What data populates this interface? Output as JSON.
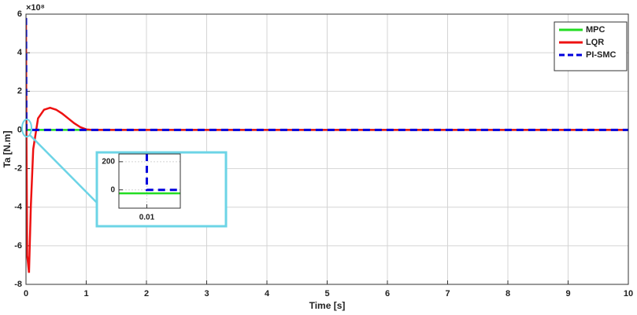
{
  "chart_data": [
    {
      "type": "line",
      "x_label": "Time [s]",
      "y_label": "Ta [N.m]",
      "y_multiplier": "×10⁸",
      "x": [
        0,
        0.005,
        0.02,
        0.05,
        0.08,
        0.12,
        0.2,
        0.3,
        0.4,
        0.5,
        0.6,
        0.7,
        0.8,
        0.9,
        1.0,
        1.1,
        2,
        3,
        4,
        5,
        6,
        7,
        8,
        9,
        10
      ],
      "series": [
        {
          "name": "MPC",
          "color": "#22dd22",
          "dash": false,
          "values": [
            0,
            0,
            0,
            0,
            0,
            0,
            0,
            0,
            0,
            0,
            0,
            0,
            0,
            0,
            0,
            0,
            0,
            0,
            0,
            0,
            0,
            0,
            0,
            0,
            0
          ]
        },
        {
          "name": "LQR",
          "color": "#ee1111",
          "dash": false,
          "values": [
            5.8,
            1.0,
            -6.5,
            -7.4,
            -4.0,
            -1.0,
            0.6,
            1.05,
            1.15,
            1.05,
            0.85,
            0.6,
            0.35,
            0.15,
            0.03,
            0,
            0,
            0,
            0,
            0,
            0,
            0,
            0,
            0,
            0
          ]
        },
        {
          "name": "PI-SMC",
          "color": "#0000dd",
          "dash": true,
          "values": [
            5.8,
            0,
            0,
            0,
            0,
            0,
            0,
            0,
            0,
            0,
            0,
            0,
            0,
            0,
            0,
            0,
            0,
            0,
            0,
            0,
            0,
            0,
            0,
            0,
            0
          ]
        }
      ],
      "xlim": [
        0,
        10
      ],
      "xticks": [
        0,
        1,
        2,
        3,
        4,
        5,
        6,
        7,
        8,
        9,
        10
      ],
      "ylim": [
        -8,
        6
      ],
      "yticks": [
        -8,
        -6,
        -4,
        -2,
        0,
        2,
        4,
        6
      ],
      "grid": true,
      "legend": "upper right"
    },
    {
      "type": "line",
      "x": [
        0.0075,
        0.01,
        0.01,
        0.013
      ],
      "series": [
        {
          "color": "#22dd22",
          "dash": false,
          "values": [
            -25,
            -25,
            -25,
            -25
          ]
        },
        {
          "color": "#0000dd",
          "dash": true,
          "values": [
            null,
            255,
            0,
            0
          ]
        }
      ],
      "xlim": [
        0.0075,
        0.013
      ],
      "xticks": [
        0.01
      ],
      "ylim": [
        -130,
        255
      ],
      "yticks": [
        0,
        200
      ],
      "grid": true
    }
  ]
}
